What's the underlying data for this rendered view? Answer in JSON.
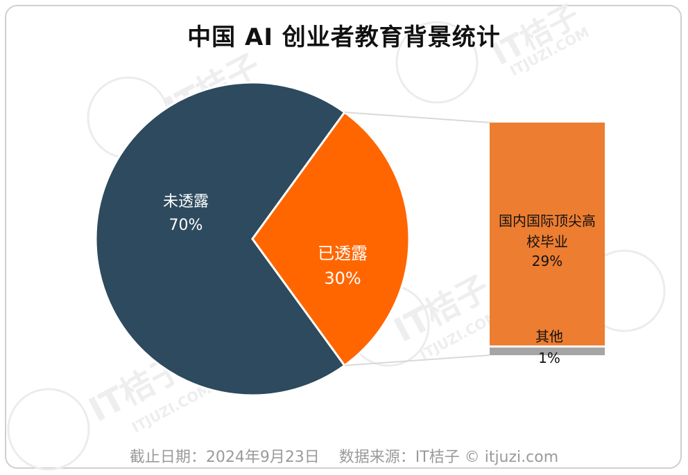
{
  "title": "中国 AI 创业者教育背景统计",
  "footer": {
    "date_text": "截止日期：2024年9月23日",
    "source_text": "数据来源：IT桔子 © itjuzi.com"
  },
  "watermark": {
    "brand": "IT桔子",
    "site": "ITJUZI.COM"
  },
  "colors": {
    "undisclosed": "#2d4a5e",
    "disclosed": "#ff6600",
    "top_university": "#ed7d31",
    "other": "#a5a5a5",
    "connector": "#d9d9d9"
  },
  "chart_data": {
    "type": "pie",
    "title": "中国 AI 创业者教育背景统计",
    "slices": [
      {
        "label": "未透露",
        "value": 70,
        "value_text": "70%"
      },
      {
        "label": "已透露",
        "value": 30,
        "value_text": "30%"
      }
    ],
    "breakdown": {
      "type": "stacked-bar",
      "parent": "已透露",
      "segments": [
        {
          "label": "国内国际顶尖高校毕业",
          "value": 29,
          "value_text": "29%"
        },
        {
          "label": "其他",
          "value": 1,
          "value_text": "1%"
        }
      ]
    }
  }
}
